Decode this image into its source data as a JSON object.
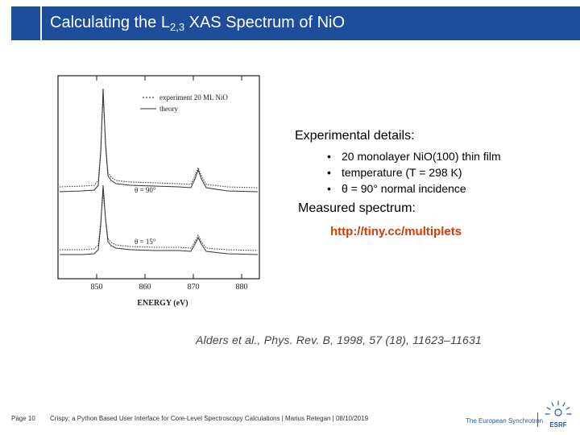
{
  "header": {
    "title_prefix": "Calculating the L",
    "title_sub": "2,3",
    "title_suffix": " XAS Spectrum of NiO"
  },
  "figure": {
    "legend_experiment": "experiment 20 ML NiO",
    "legend_theory": "theory",
    "angle_top": "θ = 90°",
    "angle_bottom": "θ = 15°",
    "x_ticks": [
      "850",
      "860",
      "870",
      "880"
    ],
    "x_label": "ENERGY (eV)"
  },
  "details": {
    "heading": "Experimental details:",
    "bullets": [
      "20 monolayer NiO(100) thin film",
      "temperature (T = 298 K)",
      "θ = 90° normal incidence"
    ],
    "bullet_glyph": "•",
    "measured_label": "Measured spectrum:",
    "link_text": "http://tiny.cc/multiplets"
  },
  "citation": "Alders et al., Phys. Rev. B, 1998, 57 (18), 11623–11631",
  "footer": {
    "page": "Page 10",
    "text": "Crispy: a Python Based User Interface for Core-Level Spectroscopy Calculations | Marius Retegan | 08/10/2019",
    "org": "The European Synchrotron",
    "logo_text": "ESRF"
  },
  "colors": {
    "title_bg": "#1d4e9b",
    "link": "#d83a00"
  }
}
